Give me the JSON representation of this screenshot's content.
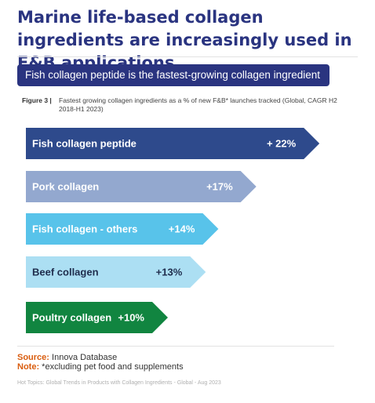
{
  "headline": "Marine life-based collagen ingredients are increasingly used in F&B applications",
  "banner": "Fish collagen peptide is the fastest-growing collagen ingredient",
  "figure": {
    "label": "Figure 3 |",
    "caption": "Fastest growing collagen ingredients as a % of new F&B* launches tracked (Global, CAGR H2 2018-H1 2023)"
  },
  "chart_data": {
    "type": "bar",
    "orientation": "horizontal",
    "title": "",
    "categories": [
      "Fish collagen peptide",
      "Pork collagen",
      "Fish collagen - others",
      "Beef collagen",
      "Poultry collagen"
    ],
    "values": [
      22,
      17,
      14,
      13,
      10
    ],
    "value_labels": [
      "+ 22%",
      "+17%",
      "+14%",
      "+13%",
      "+10%"
    ],
    "colors": [
      "#2e4a8c",
      "#93a8cf",
      "#58c3ea",
      "#acdff3",
      "#118540"
    ],
    "label_colors": [
      "#ffffff",
      "#ffffff",
      "#ffffff",
      "#1f2d4d",
      "#ffffff"
    ],
    "grid": false,
    "legend": "none"
  },
  "source": {
    "key": "Source:",
    "text": "Innova Database"
  },
  "note": {
    "key": "Note:",
    "text": "*excluding pet food and supplements"
  },
  "footer": "Hot Topics: Global Trends in Products with Collagen Ingredients - Global - Aug 2023"
}
